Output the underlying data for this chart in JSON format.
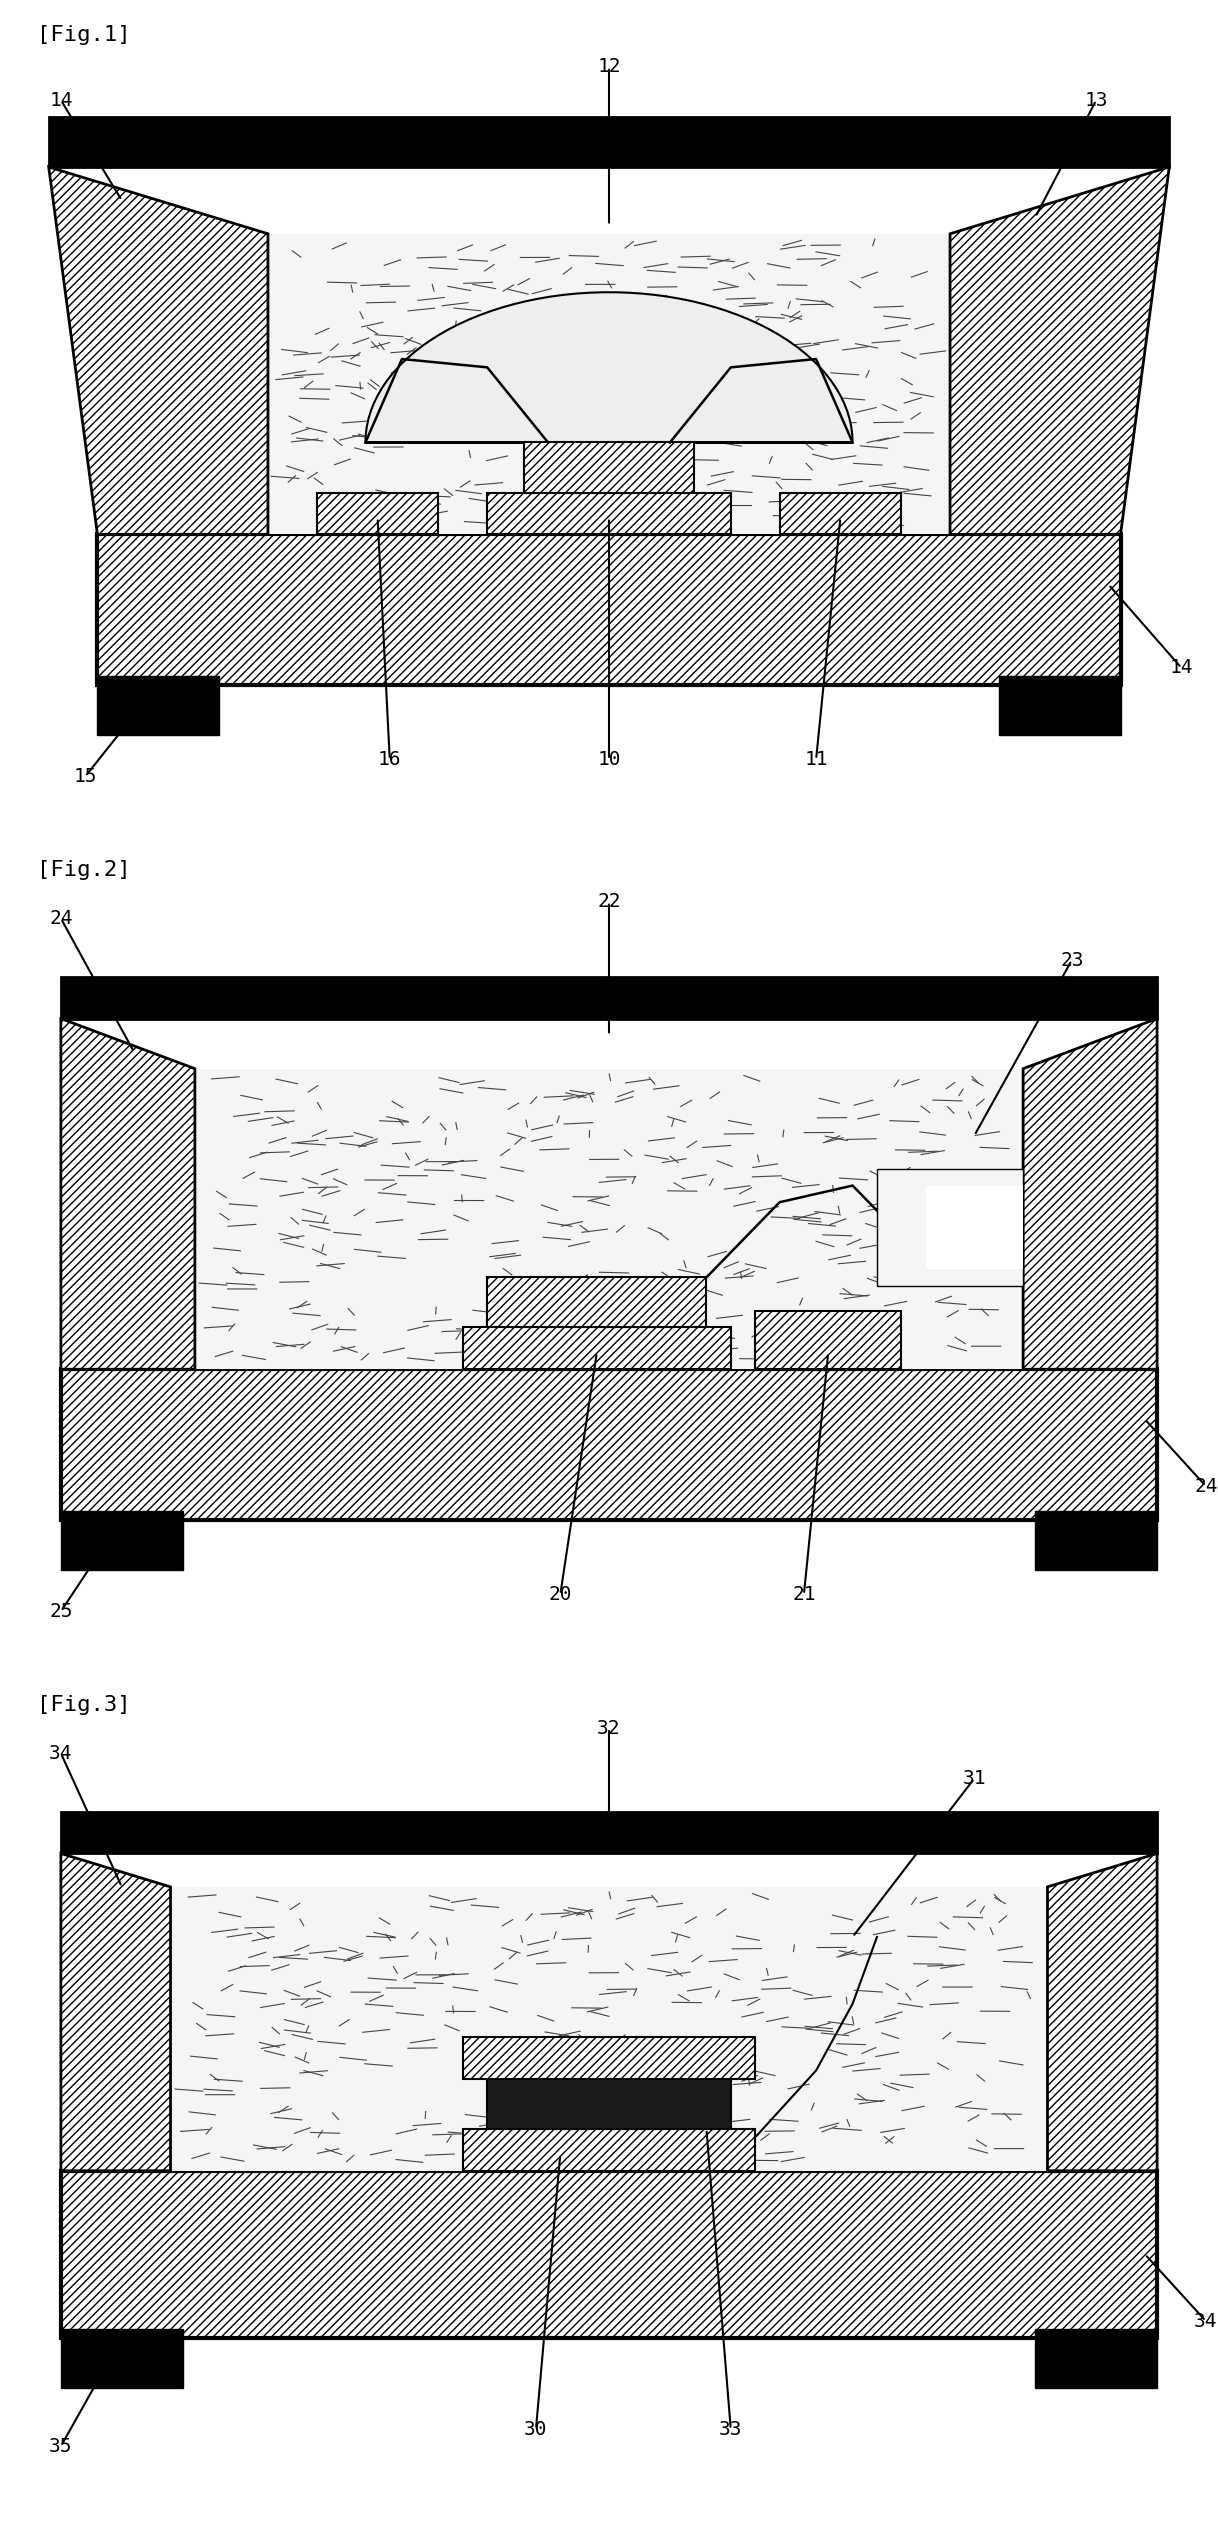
{
  "fig1_label": "[Fig.1]",
  "fig2_label": "[Fig.2]",
  "fig3_label": "[Fig.3]",
  "bg_color": "#ffffff",
  "lw_thick": 3.0,
  "lw_med": 2.0,
  "lw_thin": 1.5
}
